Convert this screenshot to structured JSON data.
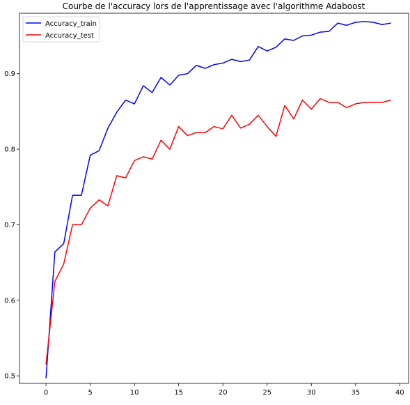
{
  "chart_data": {
    "type": "line",
    "title": "Courbe de l'accuracy lors de l'apprentissage avec l'algorithme Adaboost",
    "xlabel": "",
    "ylabel": "",
    "xlim": [
      -3,
      41
    ],
    "ylim": [
      0.49,
      0.98
    ],
    "xticks": [
      0,
      5,
      10,
      15,
      20,
      25,
      30,
      35,
      40
    ],
    "yticks": [
      0.5,
      0.6,
      0.7,
      0.8,
      0.9
    ],
    "legend_position": "top-left",
    "grid": false,
    "x": [
      0,
      1,
      2,
      3,
      4,
      5,
      6,
      7,
      8,
      9,
      10,
      11,
      12,
      13,
      14,
      15,
      16,
      17,
      18,
      19,
      20,
      21,
      22,
      23,
      24,
      25,
      26,
      27,
      28,
      29,
      30,
      31,
      32,
      33,
      34,
      35,
      36,
      37,
      38,
      39
    ],
    "series": [
      {
        "name": "Accuracy_train",
        "color": "#0000ff",
        "values": [
          0.497,
          0.664,
          0.675,
          0.739,
          0.739,
          0.792,
          0.798,
          0.828,
          0.849,
          0.865,
          0.86,
          0.884,
          0.875,
          0.895,
          0.885,
          0.898,
          0.9,
          0.911,
          0.907,
          0.912,
          0.914,
          0.919,
          0.916,
          0.918,
          0.936,
          0.93,
          0.935,
          0.946,
          0.944,
          0.95,
          0.951,
          0.955,
          0.956,
          0.967,
          0.964,
          0.968,
          0.969,
          0.968,
          0.965,
          0.967
        ]
      },
      {
        "name": "Accuracy_test",
        "color": "#ff0000",
        "values": [
          0.515,
          0.625,
          0.648,
          0.7,
          0.7,
          0.722,
          0.733,
          0.725,
          0.765,
          0.762,
          0.785,
          0.79,
          0.787,
          0.812,
          0.8,
          0.83,
          0.818,
          0.822,
          0.822,
          0.83,
          0.827,
          0.845,
          0.828,
          0.833,
          0.845,
          0.83,
          0.817,
          0.858,
          0.84,
          0.865,
          0.853,
          0.867,
          0.862,
          0.862,
          0.855,
          0.86,
          0.862,
          0.862,
          0.862,
          0.865
        ]
      }
    ]
  }
}
